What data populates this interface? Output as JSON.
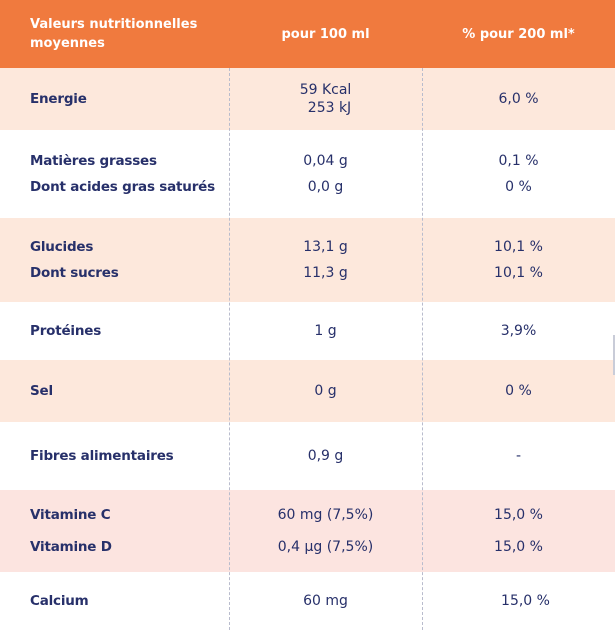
{
  "header": {
    "col1": "Valeurs nutritionnelles moyennes",
    "col2": "pour 100 ml",
    "col3": "% pour 200 ml*"
  },
  "rows": [
    {
      "labels": [
        "Energie"
      ],
      "per100": [
        "59 Kcal",
        "253 kJ"
      ],
      "per200": [
        "6,0 %"
      ]
    },
    {
      "labels": [
        "Matières grasses",
        "Dont acides gras saturés"
      ],
      "per100": [
        "0,04 g",
        "0,0 g"
      ],
      "per200": [
        "0,1 %",
        "0 %"
      ]
    },
    {
      "labels": [
        "Glucides",
        "Dont sucres"
      ],
      "per100": [
        "13,1 g",
        "11,3 g"
      ],
      "per200": [
        "10,1 %",
        "10,1 %"
      ]
    },
    {
      "labels": [
        "Protéines"
      ],
      "per100": [
        "1 g"
      ],
      "per200": [
        "3,9%"
      ]
    },
    {
      "labels": [
        "Sel"
      ],
      "per100": [
        "0 g"
      ],
      "per200": [
        "0 %"
      ]
    },
    {
      "labels": [
        "Fibres alimentaires"
      ],
      "per100": [
        "0,9 g"
      ],
      "per200": [
        "-"
      ]
    },
    {
      "labels": [
        "Vitamine C",
        "Vitamine D"
      ],
      "per100": [
        "60 mg (7,5%)",
        "0,4 µg (7,5%)"
      ],
      "per200": [
        "15,0 %",
        "15,0 %"
      ]
    },
    {
      "labels": [
        "Calcium"
      ],
      "per100": [
        "60 mg"
      ],
      "per200": [
        "15,0 %"
      ]
    }
  ],
  "colors": {
    "header_bg": "#f07a3e",
    "row_peach": "#fde8dc",
    "row_pink": "#fce4e0",
    "text": "#27306a"
  }
}
